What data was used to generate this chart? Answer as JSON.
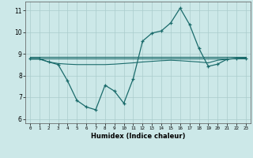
{
  "xlabel": "Humidex (Indice chaleur)",
  "bg_color": "#cce8e8",
  "grid_color": "#aacccc",
  "line_color": "#1a6b6b",
  "xlim": [
    -0.5,
    23.5
  ],
  "ylim": [
    5.8,
    11.4
  ],
  "yticks": [
    6,
    7,
    8,
    9,
    10,
    11
  ],
  "xticks": [
    0,
    1,
    2,
    3,
    4,
    5,
    6,
    7,
    8,
    9,
    10,
    11,
    12,
    13,
    14,
    15,
    16,
    17,
    18,
    19,
    20,
    21,
    22,
    23
  ],
  "line1_x": [
    0,
    23
  ],
  "line1_y": [
    8.8,
    8.8
  ],
  "line2_x": [
    0,
    23
  ],
  "line2_y": [
    8.87,
    8.87
  ],
  "line3_x": [
    0,
    1,
    2,
    3,
    4,
    5,
    6,
    7,
    8,
    9,
    10,
    11,
    12,
    13,
    14,
    15,
    16,
    17,
    18,
    19,
    20,
    21,
    22,
    23
  ],
  "line3_y": [
    8.75,
    8.75,
    8.62,
    8.55,
    8.52,
    8.5,
    8.5,
    8.5,
    8.5,
    8.52,
    8.55,
    8.58,
    8.62,
    8.65,
    8.68,
    8.7,
    8.68,
    8.65,
    8.62,
    8.58,
    8.7,
    8.75,
    8.78,
    8.8
  ],
  "curve_x": [
    0,
    1,
    2,
    3,
    4,
    5,
    6,
    7,
    8,
    9,
    10,
    11,
    12,
    13,
    14,
    15,
    16,
    17,
    18,
    19,
    20,
    21,
    22,
    23
  ],
  "curve_y": [
    8.78,
    8.78,
    8.62,
    8.5,
    7.75,
    6.85,
    6.55,
    6.42,
    7.55,
    7.28,
    6.72,
    7.85,
    9.58,
    9.95,
    10.05,
    10.42,
    11.1,
    10.35,
    9.25,
    8.42,
    8.52,
    8.75,
    8.78,
    8.8
  ]
}
